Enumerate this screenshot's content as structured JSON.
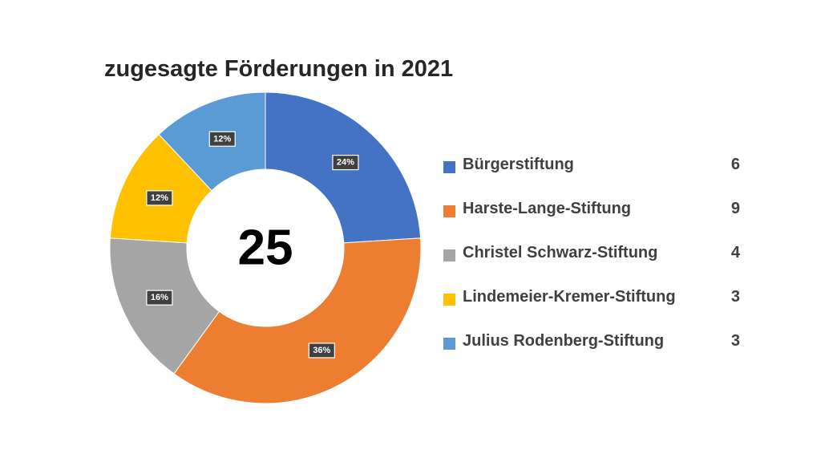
{
  "chart_data": {
    "type": "pie",
    "variant": "donut",
    "title": "zugesagte Förderungen in 2021",
    "center_label": "25",
    "categories": [
      "Bürgerstiftung",
      "Harste-Lange-Stiftung",
      "Christel Schwarz-Stiftung",
      "Lindemeier-Kremer-Stiftung",
      "Julius Rodenberg-Stiftung"
    ],
    "values": [
      6,
      9,
      4,
      3,
      3
    ],
    "data_labels": [
      "24%",
      "36%",
      "16%",
      "12%",
      "12%"
    ],
    "colors": [
      "#4472C4",
      "#ED7D31",
      "#A5A5A5",
      "#FFC000",
      "#5B9BD5"
    ],
    "legend_position": "right",
    "start_angle": "top",
    "direction": "clockwise"
  }
}
